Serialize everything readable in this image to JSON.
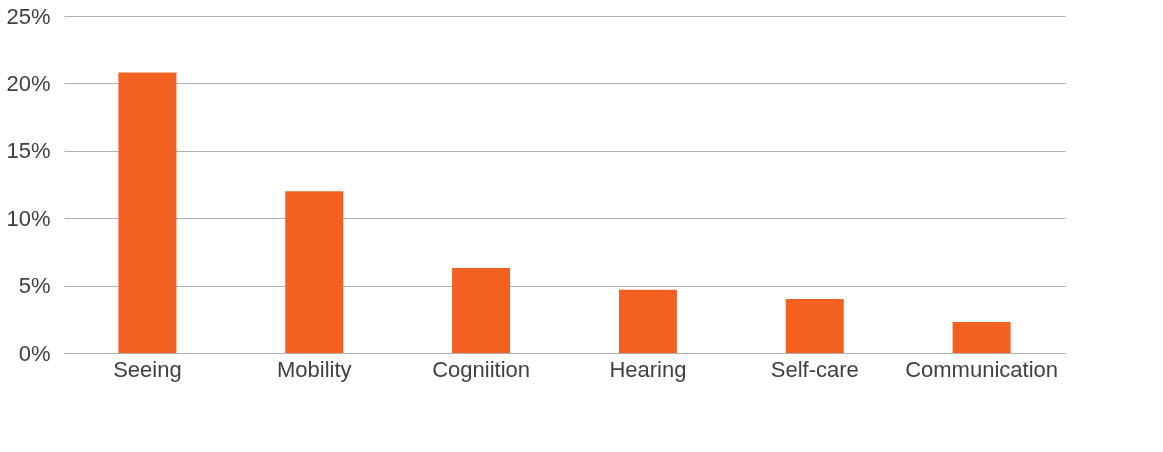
{
  "chart_data": {
    "type": "bar",
    "categories": [
      "Seeing",
      "Mobility",
      "Cogniition",
      "Hearing",
      "Self-care",
      "Communication"
    ],
    "values": [
      20.8,
      12.0,
      6.3,
      4.7,
      4.0,
      2.3
    ],
    "color": "#f26122",
    "ylim": [
      0,
      25
    ],
    "yticks": [
      {
        "value": 0,
        "label": "0%"
      },
      {
        "value": 5,
        "label": "5%"
      },
      {
        "value": 10,
        "label": "10%"
      },
      {
        "value": 15,
        "label": "15%"
      },
      {
        "value": 20,
        "label": "20%"
      },
      {
        "value": 25,
        "label": "25%"
      }
    ],
    "grid": "y"
  }
}
